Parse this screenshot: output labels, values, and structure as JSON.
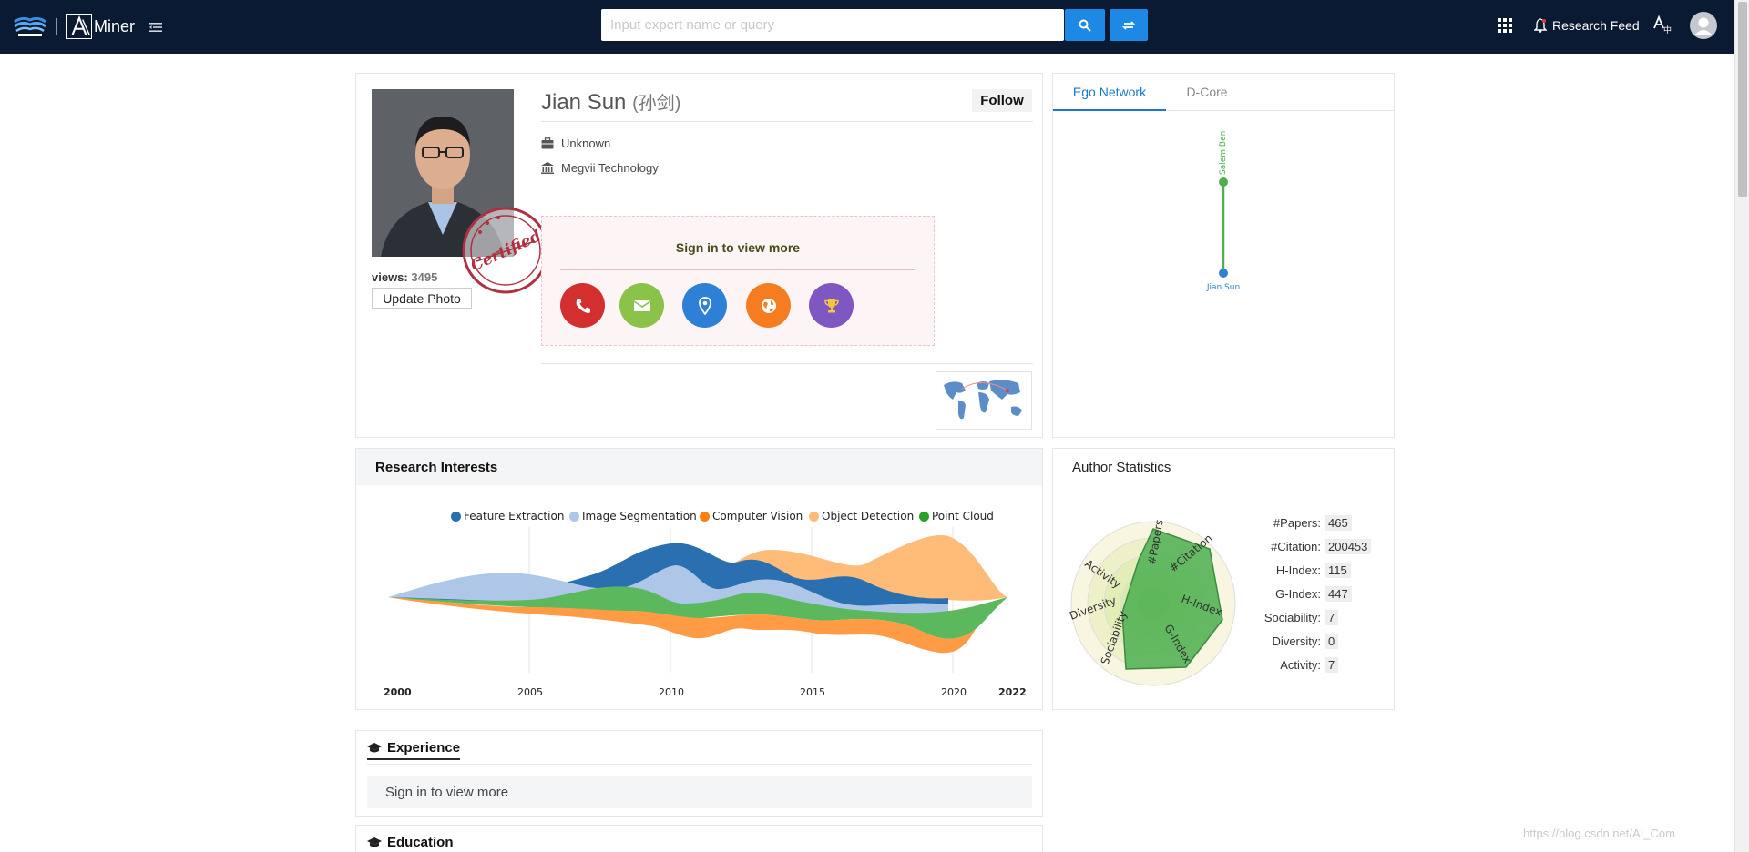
{
  "topbar": {
    "logo_text": "Miner",
    "search_placeholder": "Input expert name or query",
    "research_feed": "Research Feed"
  },
  "profile": {
    "name": "Jian Sun",
    "name_cn": "(孙剑)",
    "follow_label": "Follow",
    "position": "Unknown",
    "affiliation": "Megvii Technology",
    "views_label": "views:",
    "views_count": "3495",
    "update_photo_label": "Update Photo",
    "signin_text": "Sign in to view more",
    "stamp_text": "Certified",
    "contact_icons": [
      {
        "name": "phone-icon",
        "color": "#d32f2f"
      },
      {
        "name": "email-icon",
        "color": "#8bc34a"
      },
      {
        "name": "location-icon",
        "color": "#2e7fd6"
      },
      {
        "name": "globe-icon",
        "color": "#f57c1f"
      },
      {
        "name": "trophy-icon",
        "color": "#7e57c2"
      }
    ]
  },
  "ego_network": {
    "tabs": [
      "Ego Network",
      "D-Core"
    ],
    "active_tab": "Ego Network",
    "nodes": [
      "Salem Ben",
      "Jian Sun"
    ]
  },
  "research_interests": {
    "title": "Research Interests",
    "legend": [
      {
        "label": "Feature Extraction",
        "color": "#2a6fb0"
      },
      {
        "label": "Image Segmentation",
        "color": "#aec7e8"
      },
      {
        "label": "Computer Vision",
        "color": "#ff7f0e"
      },
      {
        "label": "Object Detection",
        "color": "#ffbb78"
      },
      {
        "label": "Point Cloud",
        "color": "#2ca02c"
      }
    ],
    "x_labels": [
      "2000",
      "2005",
      "2010",
      "2015",
      "2020",
      "2022"
    ]
  },
  "author_statistics": {
    "title": "Author Statistics",
    "stats": [
      {
        "label": "#Papers:",
        "value": "465"
      },
      {
        "label": "#Citation:",
        "value": "200453"
      },
      {
        "label": "H-Index:",
        "value": "115"
      },
      {
        "label": "G-Index:",
        "value": "447"
      },
      {
        "label": "Sociability:",
        "value": "7"
      },
      {
        "label": "Diversity:",
        "value": "0"
      },
      {
        "label": "Activity:",
        "value": "7"
      }
    ],
    "radar_axes": [
      "#Papers",
      "#Citation",
      "H-Index",
      "G-Index",
      "Sociability",
      "Diversity",
      "Activity"
    ]
  },
  "experience": {
    "title": "Experience",
    "signin_text": "Sign in to view more"
  },
  "education": {
    "title": "Education"
  },
  "watermark": "https://blog.csdn.net/AI_Com"
}
